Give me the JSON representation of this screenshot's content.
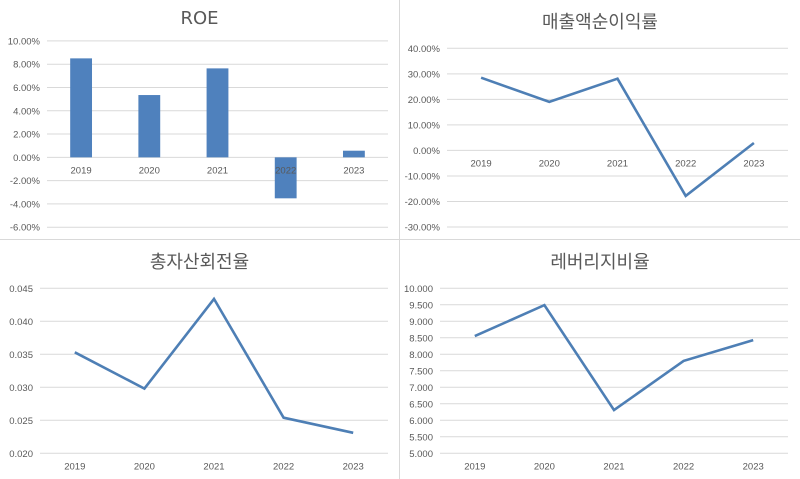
{
  "colors": {
    "series": "#4f81bd",
    "line": "#4e7fb5",
    "grid": "#d9d9d9",
    "text": "#595959"
  },
  "chart_data": [
    {
      "id": "roe",
      "type": "bar",
      "title": "ROE",
      "categories": [
        "2019",
        "2020",
        "2021",
        "2022",
        "2023"
      ],
      "values": [
        0.085,
        0.0535,
        0.0764,
        -0.0352,
        0.0057
      ],
      "xlabel": "",
      "ylabel": "",
      "ylim": [
        -0.06,
        0.1
      ],
      "yticks": [
        0.1,
        0.08,
        0.06,
        0.04,
        0.02,
        0.0,
        -0.02,
        -0.04,
        -0.06
      ],
      "ytick_labels": [
        "10.00%",
        "8.00%",
        "6.00%",
        "4.00%",
        "2.00%",
        "0.00%",
        "-2.00%",
        "-4.00%",
        "-6.00%"
      ],
      "grid": true,
      "legend": "none"
    },
    {
      "id": "net-margin",
      "type": "line",
      "title": "매출액순이익률",
      "categories": [
        "2019",
        "2020",
        "2021",
        "2022",
        "2023"
      ],
      "values": [
        0.285,
        0.19,
        0.281,
        -0.178,
        0.029
      ],
      "xlabel": "",
      "ylabel": "",
      "ylim": [
        -0.3,
        0.4
      ],
      "yticks": [
        0.4,
        0.3,
        0.2,
        0.1,
        0.0,
        -0.1,
        -0.2,
        -0.3
      ],
      "ytick_labels": [
        "40.00%",
        "30.00%",
        "20.00%",
        "10.00%",
        "0.00%",
        "-10.00%",
        "-20.00%",
        "-30.00%"
      ],
      "grid": true,
      "legend": "none"
    },
    {
      "id": "asset-turnover",
      "type": "line",
      "title": "총자산회전율",
      "categories": [
        "2019",
        "2020",
        "2021",
        "2022",
        "2023"
      ],
      "values": [
        0.0353,
        0.0298,
        0.0434,
        0.0254,
        0.0231
      ],
      "xlabel": "",
      "ylabel": "",
      "ylim": [
        0.02,
        0.045
      ],
      "yticks": [
        0.045,
        0.04,
        0.035,
        0.03,
        0.025,
        0.02
      ],
      "ytick_labels": [
        "0.045",
        "0.040",
        "0.035",
        "0.030",
        "0.025",
        "0.020"
      ],
      "grid": true,
      "legend": "none"
    },
    {
      "id": "leverage",
      "type": "line",
      "title": "레버리지비율",
      "categories": [
        "2019",
        "2020",
        "2021",
        "2022",
        "2023"
      ],
      "values": [
        8.55,
        9.49,
        6.31,
        7.8,
        8.43
      ],
      "xlabel": "",
      "ylabel": "",
      "ylim": [
        5.0,
        10.0
      ],
      "yticks": [
        10.0,
        9.5,
        9.0,
        8.5,
        8.0,
        7.5,
        7.0,
        6.5,
        6.0,
        5.5,
        5.0
      ],
      "ytick_labels": [
        "10.000",
        "9.500",
        "9.000",
        "8.500",
        "8.000",
        "7.500",
        "7.000",
        "6.500",
        "6.000",
        "5.500",
        "5.000"
      ],
      "grid": true,
      "legend": "none"
    }
  ]
}
